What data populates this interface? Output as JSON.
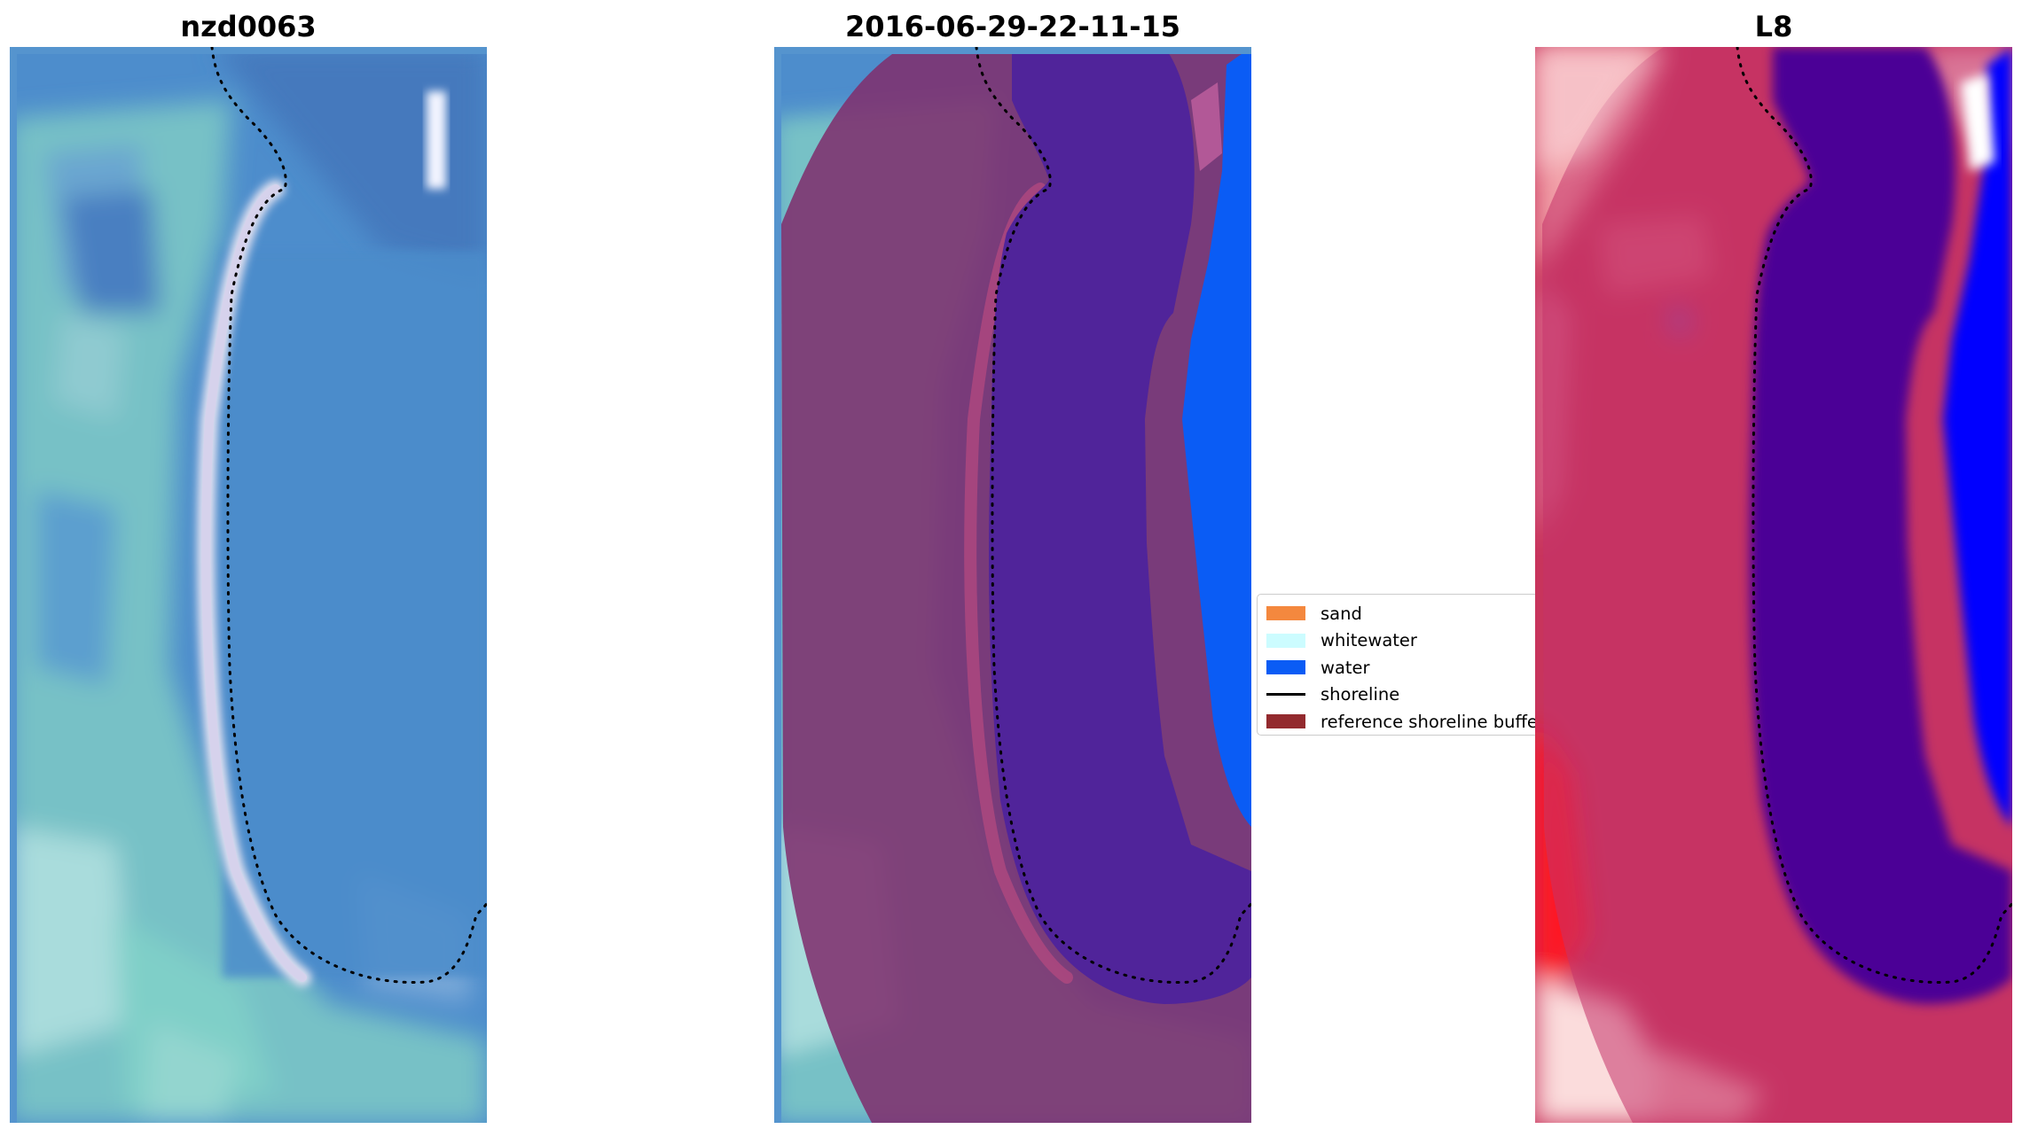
{
  "panels": {
    "rgb": {
      "title": "nzd0063"
    },
    "classified": {
      "title": "2016-06-29-22-11-15"
    },
    "mndwi": {
      "title": "L8"
    }
  },
  "legend": {
    "items": [
      {
        "label": "sand",
        "color": "#f4883e",
        "kind": "patch"
      },
      {
        "label": "whitewater",
        "color": "#ccfcff",
        "kind": "patch"
      },
      {
        "label": "water",
        "color": "#0a5cf5",
        "kind": "patch"
      },
      {
        "label": "shoreline",
        "color": "#000000",
        "kind": "line"
      },
      {
        "label": "reference shoreline buffer",
        "color": "#932a2e",
        "kind": "patch"
      }
    ]
  },
  "colors": {
    "sea": "#4b8ccb",
    "lagoon_class": "#50249a",
    "buffer_overlay": "#80306e",
    "ocean_water_class": "#0a5cf5",
    "mndwi_land": "#c8345c",
    "mndwi_water": "#4b0096",
    "mndwi_ocean": "#0000ff"
  }
}
